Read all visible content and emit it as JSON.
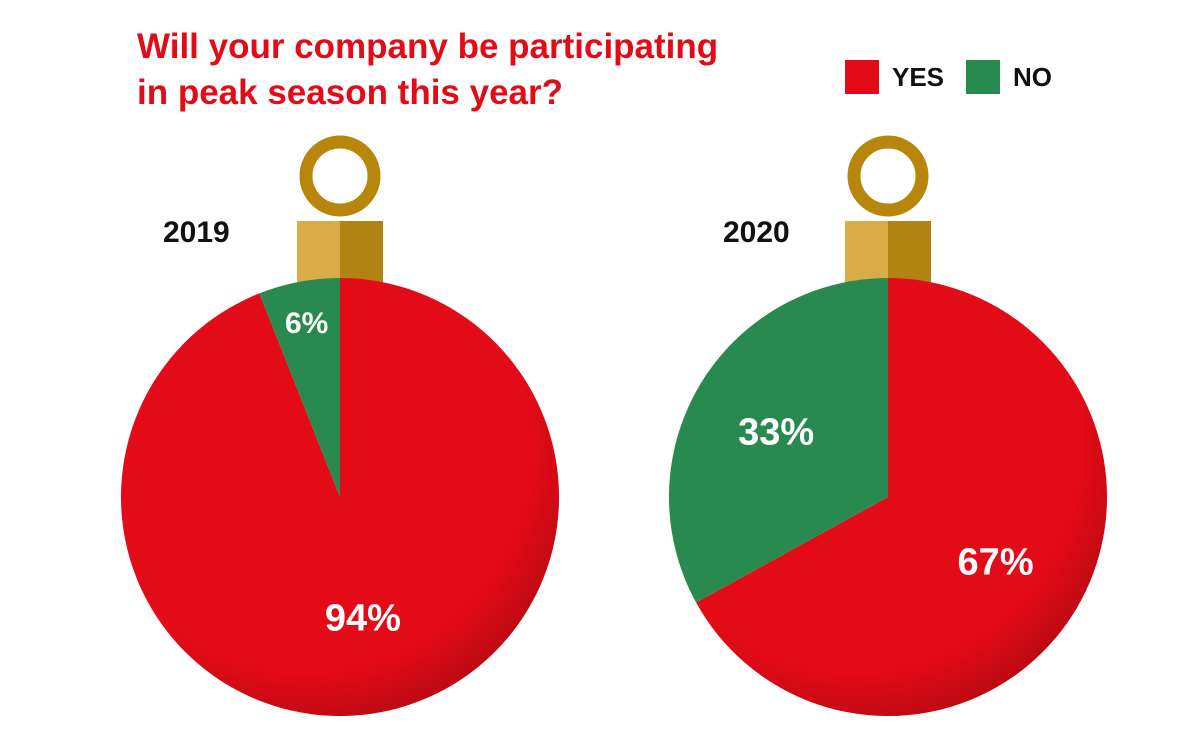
{
  "title_lines": [
    "Will your company be participating",
    "in peak season this year?"
  ],
  "legend": [
    {
      "label": "YES",
      "color": "#e30b17"
    },
    {
      "label": "NO",
      "color": "#288a4f"
    }
  ],
  "ornament_colors": {
    "hook": "#b8860b",
    "cap_light": "#d9ac47",
    "cap_dark": "#b08313",
    "shade": "#c50812"
  },
  "chart_data": [
    {
      "type": "pie",
      "label": "2019",
      "slices": [
        {
          "name": "YES",
          "value": 94,
          "label": "94%",
          "color": "#e30b17"
        },
        {
          "name": "NO",
          "value": 6,
          "label": "6%",
          "color": "#288a4f"
        }
      ]
    },
    {
      "type": "pie",
      "label": "2020",
      "slices": [
        {
          "name": "YES",
          "value": 67,
          "label": "67%",
          "color": "#e30b17"
        },
        {
          "name": "NO",
          "value": 33,
          "label": "33%",
          "color": "#288a4f"
        }
      ]
    }
  ]
}
